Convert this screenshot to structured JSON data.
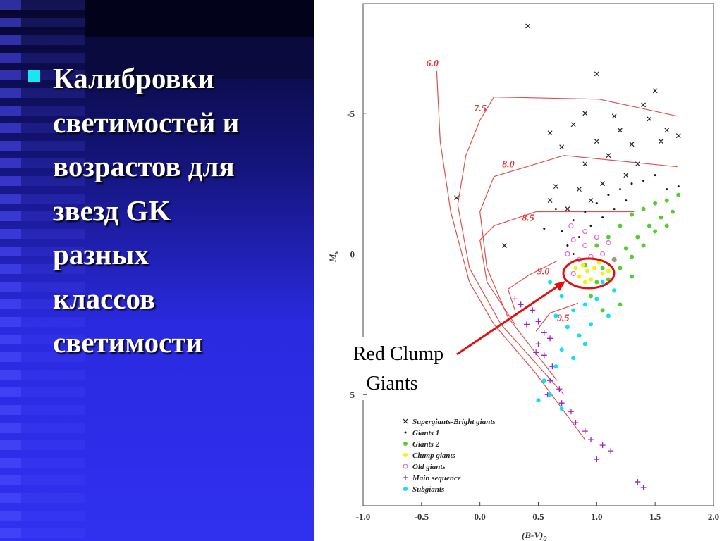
{
  "slide": {
    "lines": [
      "Калибровки",
      "светимостей и",
      "возрастов для",
      "звезд GK",
      "разных",
      "классов",
      "светимости"
    ]
  },
  "annotation": [
    "Red Clump",
    "Giants"
  ],
  "chart_data": {
    "type": "scatter",
    "xlabel": "(B-V)",
    "xlabel_sub": "0",
    "ylabel": "M",
    "ylabel_sub": "v",
    "xlim": [
      -1.0,
      2.0
    ],
    "ylim": [
      -8.9,
      8.95
    ],
    "y_inverted": true,
    "xticks": [
      {
        "value": -1.0,
        "label": "-1.0"
      },
      -0.5,
      {
        "value": 0.0,
        "label": "0.0"
      },
      0.5,
      {
        "value": 1.0,
        "label": "1.0"
      },
      1.5,
      {
        "value": 2.0,
        "label": "2.0"
      }
    ],
    "yticks": [
      -5,
      0,
      5
    ],
    "legend": "lower left",
    "series": [
      {
        "name": "Supergiants-Bright giants",
        "marker": "x",
        "color": "#222222",
        "x": [
          0.41,
          1.0,
          0.21,
          0.6,
          0.7,
          0.8,
          0.9,
          1.0,
          1.1,
          1.2,
          1.3,
          1.4,
          1.5,
          1.45,
          1.6,
          1.7,
          1.35,
          1.25,
          1.05,
          0.85,
          0.65,
          0.75,
          0.95,
          1.15,
          0.9,
          0.6,
          1.55,
          -0.2
        ],
        "y": [
          -8.1,
          -6.4,
          -0.3,
          -4.3,
          -3.8,
          -4.6,
          -3.2,
          -4.0,
          -3.5,
          -4.4,
          -3.9,
          -5.3,
          -5.8,
          -4.8,
          -4.4,
          -4.2,
          -3.2,
          -2.8,
          -2.5,
          -2.3,
          -2.4,
          -1.6,
          -1.9,
          -4.9,
          -5.0,
          -1.9,
          -4.0,
          -2.0
        ]
      },
      {
        "name": "Giants 1",
        "marker": "dot",
        "color": "#111111",
        "x": [
          0.7,
          0.8,
          0.9,
          1.0,
          1.1,
          1.2,
          1.3,
          1.4,
          1.5,
          0.75,
          0.85,
          0.95,
          1.05,
          0.65,
          1.25,
          0.8,
          1.6,
          1.7,
          0.55,
          1.15
        ],
        "y": [
          -0.8,
          -1.2,
          -1.5,
          -1.8,
          -2.1,
          -2.3,
          -2.5,
          -2.6,
          -2.8,
          -0.3,
          -0.6,
          -1.0,
          -1.3,
          -1.6,
          -1.9,
          0.0,
          -2.3,
          -2.4,
          -0.9,
          -1.6
        ]
      },
      {
        "name": "Giants 2",
        "marker": "circle",
        "color": "#55cc33",
        "x": [
          1.0,
          1.1,
          1.2,
          1.3,
          1.4,
          1.5,
          1.6,
          1.7,
          1.05,
          1.15,
          1.25,
          1.35,
          1.45,
          1.55,
          1.65,
          1.0,
          1.1,
          1.2,
          1.3,
          1.4,
          1.5,
          1.6,
          0.95,
          1.05,
          1.15,
          0.9,
          1.2,
          1.3
        ],
        "y": [
          -0.3,
          -0.6,
          -1.0,
          -1.4,
          -1.6,
          -1.8,
          -1.9,
          -2.1,
          0.5,
          0.2,
          -0.2,
          -0.6,
          -1.0,
          -1.3,
          -1.5,
          1.0,
          0.9,
          0.5,
          0.1,
          -0.3,
          -0.8,
          -1.0,
          1.5,
          2.0,
          1.3,
          0.4,
          1.8,
          0.8
        ]
      },
      {
        "name": "Clump giants",
        "marker": "circle",
        "color": "#f2f20a",
        "x": [
          0.82,
          0.88,
          0.92,
          0.98,
          1.05,
          0.85,
          0.95,
          1.02,
          0.9,
          1.1
        ],
        "y": [
          0.5,
          0.4,
          0.6,
          0.5,
          0.7,
          0.8,
          0.9,
          0.3,
          1.0,
          0.6
        ]
      },
      {
        "name": "Old giants",
        "marker": "ring",
        "color": "#ee66cc",
        "x": [
          0.75,
          0.8,
          0.85,
          0.9,
          0.95,
          1.0,
          1.05,
          1.1,
          0.8,
          0.9,
          0.78,
          1.15
        ],
        "y": [
          0.0,
          -0.5,
          0.2,
          -0.3,
          0.1,
          -0.6,
          0.0,
          -0.4,
          0.7,
          -0.8,
          -1.0,
          0.2
        ]
      },
      {
        "name": "Main sequence",
        "marker": "plus",
        "color": "#9922cc",
        "x": [
          0.35,
          0.45,
          0.5,
          0.55,
          0.5,
          0.6,
          0.55,
          0.62,
          0.6,
          0.68,
          0.7,
          0.78,
          0.82,
          0.9,
          0.95,
          1.05,
          1.12,
          0.4,
          0.48,
          0.58,
          1.35,
          1.4,
          0.3,
          1.0
        ],
        "y": [
          1.8,
          2.0,
          2.4,
          2.8,
          3.2,
          3.0,
          3.6,
          4.0,
          4.5,
          4.8,
          5.3,
          5.6,
          6.0,
          6.3,
          6.6,
          6.8,
          7.0,
          2.5,
          3.5,
          5.0,
          8.1,
          8.3,
          1.6,
          7.3
        ]
      },
      {
        "name": "Subgiants",
        "marker": "circle",
        "color": "#11e0f0",
        "x": [
          0.6,
          0.7,
          0.8,
          0.9,
          1.0,
          1.1,
          0.75,
          0.85,
          0.95,
          0.7,
          0.8,
          0.65,
          0.55,
          0.6,
          0.7,
          1.05,
          0.9,
          0.65,
          1.15,
          0.5
        ],
        "y": [
          1.0,
          1.5,
          2.0,
          1.8,
          1.6,
          2.2,
          2.6,
          2.9,
          2.5,
          3.4,
          3.7,
          4.0,
          4.5,
          5.0,
          5.5,
          1.0,
          3.2,
          2.2,
          1.3,
          5.2
        ]
      }
    ],
    "isochrones": [
      {
        "label": "6.0",
        "label_x": -0.46,
        "label_y": -6.8,
        "color": "#e05050",
        "x": [
          -0.37,
          -0.34,
          -0.25,
          -0.09,
          0.12,
          0.48,
          0.9
        ],
        "y": [
          -6.5,
          -4.0,
          -1.5,
          1.0,
          2.5,
          4.25,
          6.6
        ]
      },
      {
        "label": "7.5",
        "label_x": -0.05,
        "label_y": -5.2,
        "color": "#e05050",
        "x": [
          1.69,
          1.02,
          0.12,
          0.0,
          -0.12,
          -0.19,
          -0.09,
          0.18,
          0.72
        ],
        "y": [
          -4.9,
          -5.5,
          -5.58,
          -4.75,
          -3.5,
          -1.75,
          0.5,
          2.5,
          5.0
        ]
      },
      {
        "label": "8.0",
        "label_x": 0.19,
        "label_y": -3.2,
        "color": "#e05050",
        "x": [
          1.69,
          0.72,
          0.12,
          0.0,
          0.06,
          0.24,
          0.66
        ],
        "y": [
          -3.1,
          -3.5,
          -2.75,
          -1.5,
          0.5,
          2.25,
          4.5
        ]
      },
      {
        "label": "8.5",
        "label_x": 0.36,
        "label_y": -1.3,
        "color": "#e05050",
        "x": [
          1.32,
          0.48,
          0.12,
          0.0,
          0.06,
          0.3
        ],
        "y": [
          -1.5,
          -1.5,
          -1.0,
          -0.5,
          1.0,
          2.5
        ]
      },
      {
        "label": "9.0",
        "label_x": 0.49,
        "label_y": 0.6,
        "color": "#e05050",
        "x": [
          0.66,
          0.42,
          0.24,
          0.3
        ],
        "y": [
          0.25,
          0.75,
          1.25,
          2.0
        ]
      },
      {
        "label": "9.5",
        "label_x": 0.66,
        "label_y": 2.25,
        "color": "#e05050",
        "x": [
          0.84,
          0.6,
          0.48
        ],
        "y": [
          1.75,
          2.1,
          2.75
        ]
      }
    ]
  }
}
